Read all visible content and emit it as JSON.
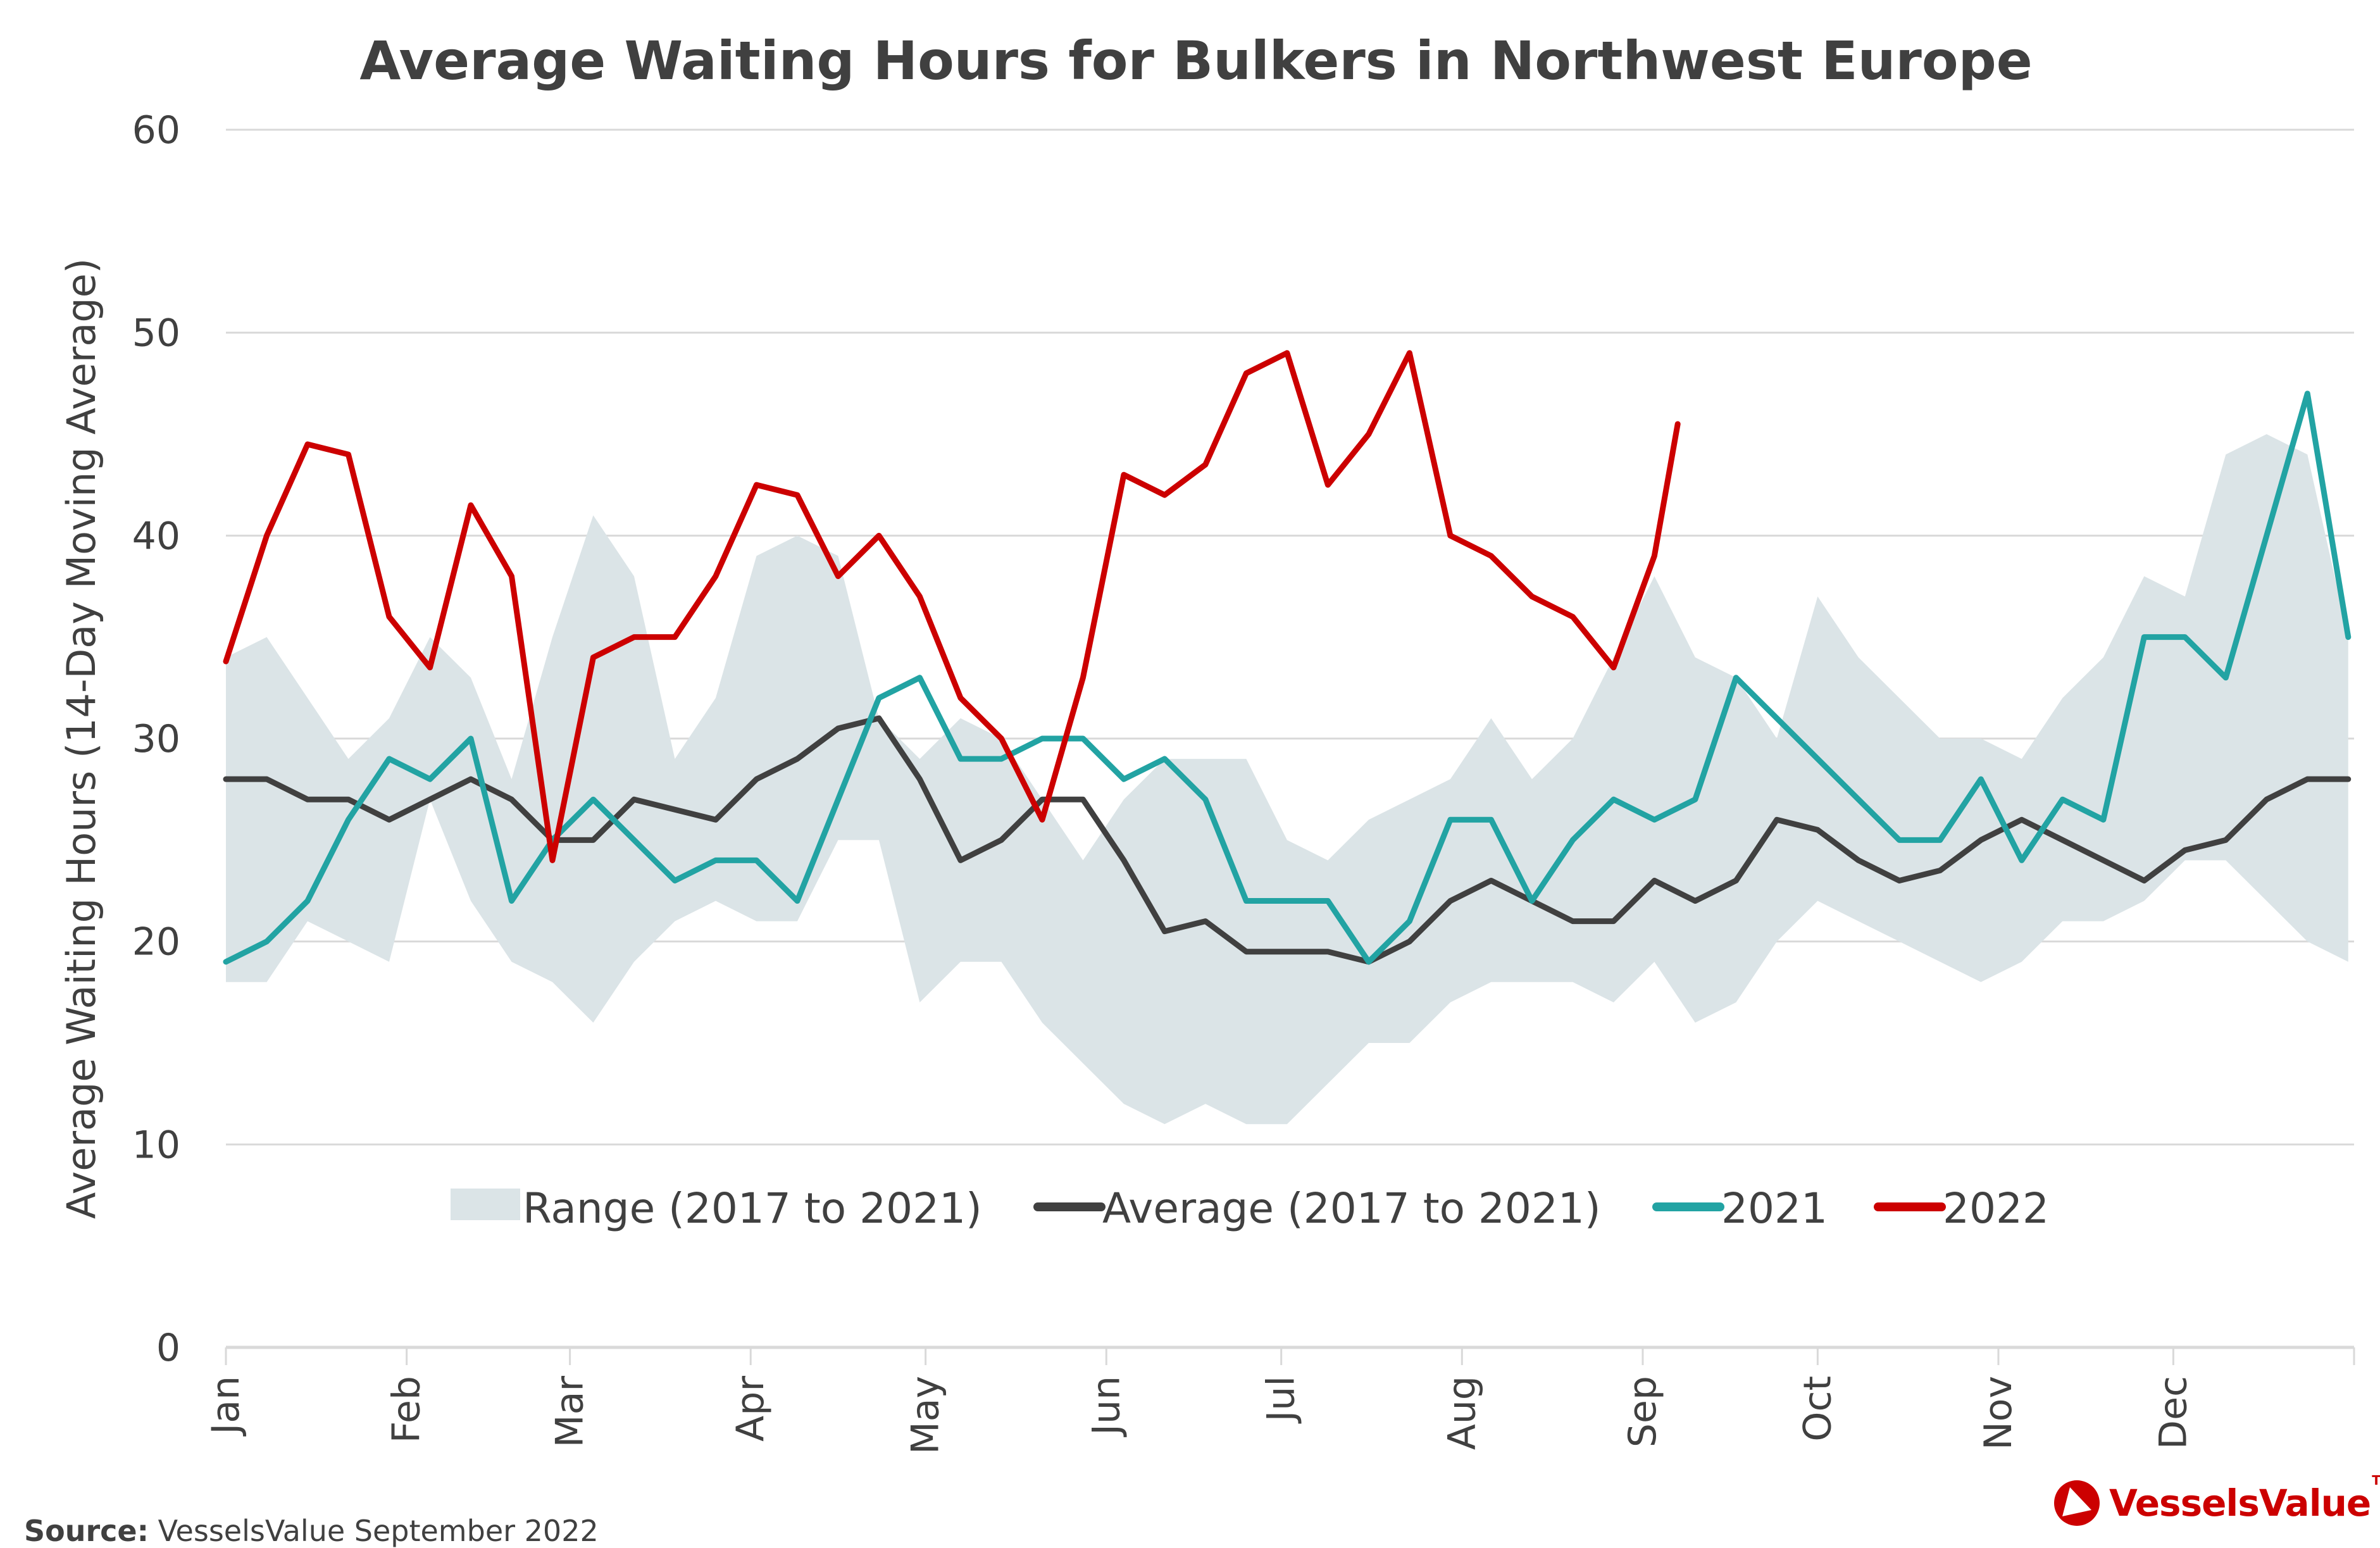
{
  "chart_data": {
    "type": "line",
    "title": "Average Waiting Hours for Bulkers in Northwest Europe",
    "xlabel": "",
    "ylabel": "Average Waiting Hours (14-Day Moving Average)",
    "ylim": [
      0,
      60
    ],
    "yticks": [
      "0",
      "10",
      "20",
      "30",
      "40",
      "50",
      "60"
    ],
    "grid": true,
    "legend_position": "inside-bottom-center",
    "x_unit": "day of year",
    "xlim": [
      0,
      365
    ],
    "month_ticks": [
      {
        "label": "Jan",
        "day": 0
      },
      {
        "label": "Feb",
        "day": 31
      },
      {
        "label": "Mar",
        "day": 59
      },
      {
        "label": "Apr",
        "day": 90
      },
      {
        "label": "May",
        "day": 120
      },
      {
        "label": "Jun",
        "day": 151
      },
      {
        "label": "Jul",
        "day": 181
      },
      {
        "label": "Aug",
        "day": 212
      },
      {
        "label": "Sep",
        "day": 243
      },
      {
        "label": "Oct",
        "day": 273
      },
      {
        "label": "Nov",
        "day": 304
      },
      {
        "label": "Dec",
        "day": 334
      }
    ],
    "x": [
      0,
      7,
      14,
      21,
      28,
      35,
      42,
      49,
      56,
      63,
      70,
      77,
      84,
      91,
      98,
      105,
      112,
      119,
      126,
      133,
      140,
      147,
      154,
      161,
      168,
      175,
      182,
      189,
      196,
      203,
      210,
      217,
      224,
      231,
      238,
      245,
      252,
      259,
      266,
      273,
      280,
      287,
      294,
      301,
      308,
      315,
      322,
      329,
      336,
      343,
      350,
      357,
      364
    ],
    "range": {
      "name": "Range (2017 to 2021)",
      "color": "#dbe4e7",
      "low": [
        18,
        18,
        21,
        20,
        19,
        27,
        22,
        19,
        18,
        16,
        19,
        21,
        22,
        21,
        21,
        25,
        25,
        17,
        19,
        19,
        16,
        14,
        12,
        11,
        12,
        11,
        11,
        13,
        15,
        15,
        17,
        18,
        18,
        18,
        17,
        19,
        16,
        17,
        20,
        22,
        21,
        20,
        19,
        18,
        19,
        21,
        21,
        22,
        24,
        24,
        22,
        20,
        19
      ],
      "high": [
        34,
        35,
        32,
        29,
        31,
        35,
        33,
        28,
        35,
        41,
        38,
        29,
        32,
        39,
        40,
        39,
        31,
        29,
        31,
        30,
        27,
        24,
        27,
        29,
        29,
        29,
        25,
        24,
        26,
        27,
        28,
        31,
        28,
        30,
        34,
        38,
        34,
        33,
        30,
        37,
        34,
        32,
        30,
        30,
        29,
        32,
        34,
        38,
        37,
        44,
        45,
        44,
        35
      ]
    },
    "series": [
      {
        "name": "Average (2017 to 2021)",
        "color": "#404040",
        "values": [
          28,
          28,
          27,
          27,
          26,
          27,
          28,
          27,
          25,
          25,
          27,
          26.5,
          26,
          28,
          29,
          30.5,
          31,
          28,
          24,
          25,
          27,
          27,
          24,
          20.5,
          21,
          19.5,
          19.5,
          19.5,
          19,
          20,
          22,
          23,
          22,
          21,
          21,
          23,
          22,
          23,
          26,
          25.5,
          24,
          23,
          23.5,
          25,
          26,
          25,
          24,
          23,
          24.5,
          25,
          27,
          28,
          28
        ]
      },
      {
        "name": "2021",
        "color": "#22a3a3",
        "values": [
          19,
          20,
          22,
          26,
          29,
          28,
          30,
          22,
          25,
          27,
          25,
          23,
          24,
          24,
          22,
          27,
          32,
          33,
          29,
          29,
          30,
          30,
          28,
          29,
          27,
          22,
          22,
          22,
          19,
          21,
          26,
          26,
          22,
          25,
          27,
          26,
          27,
          33,
          31,
          29,
          27,
          25,
          25,
          28,
          24,
          27,
          26,
          35,
          35,
          33,
          40,
          47,
          35
        ]
      },
      {
        "name": "2022",
        "color": "#cc0000",
        "values": [
          33.8,
          40,
          44.5,
          44,
          36,
          33.5,
          41.5,
          38,
          24,
          34,
          35,
          35,
          38,
          42.5,
          42,
          38,
          40,
          37,
          32,
          30,
          26,
          33,
          43,
          42,
          43.5,
          48,
          49,
          42.5,
          45,
          49,
          40,
          39,
          37,
          36,
          33.5,
          39,
          null,
          null,
          null,
          null,
          null,
          null,
          null,
          null,
          null,
          null,
          null,
          null,
          null,
          null,
          null,
          null,
          null
        ],
        "last_point": {
          "day": 249,
          "value": 45.5
        }
      }
    ],
    "legend": [
      {
        "label": "Range (2017 to 2021)",
        "type": "area"
      },
      {
        "label": "Average (2017 to 2021)",
        "type": "line"
      },
      {
        "label": "2021",
        "type": "line"
      },
      {
        "label": "2022",
        "type": "line"
      }
    ]
  },
  "footer": {
    "source_label": "Source:",
    "source_text": "VesselsValue September 2022",
    "brand": "VesselsValue",
    "brand_mark": "TM",
    "brand_color": "#cc0000"
  }
}
